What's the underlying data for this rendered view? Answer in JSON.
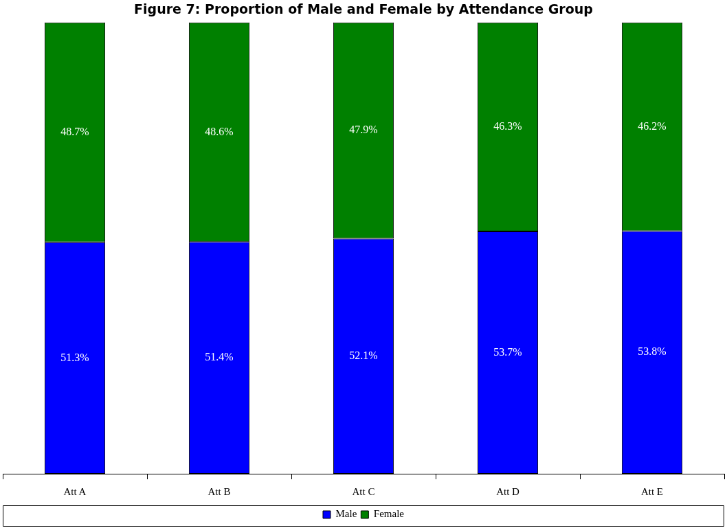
{
  "chart_data": {
    "type": "bar",
    "title": "Figure 7: Proportion of Male and Female by Attendance Group",
    "categories": [
      "Att A",
      "Att B",
      "Att C",
      "Att D",
      "Att E"
    ],
    "stacked": true,
    "ylim": [
      0,
      100
    ],
    "tick_labels": "x",
    "legend": "bottom",
    "series": [
      {
        "name": "Male",
        "color": "#0000ff",
        "values": [
          51.3,
          51.4,
          52.1,
          53.7,
          53.8
        ],
        "value_labels": [
          "51.3%",
          "51.4%",
          "52.1%",
          "53.7%",
          "53.8%"
        ]
      },
      {
        "name": "Female",
        "color": "#008000",
        "values": [
          48.7,
          48.6,
          47.9,
          46.3,
          46.2
        ],
        "value_labels": [
          "48.7%",
          "48.6%",
          "47.9%",
          "46.3%",
          "46.2%"
        ]
      }
    ]
  }
}
